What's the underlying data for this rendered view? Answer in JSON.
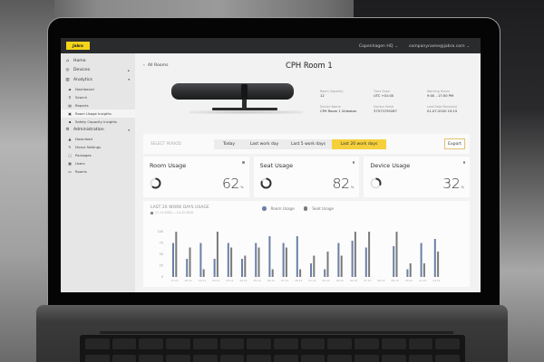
{
  "topbar": {
    "logo_text": "Jabra",
    "location": "Copenhagen HQ",
    "account": "companyname@jabra.com"
  },
  "sidebar": {
    "items": [
      {
        "label": "Home",
        "icon": "home-icon",
        "level": 0
      },
      {
        "label": "Devices",
        "icon": "headset-icon",
        "level": 0,
        "caret": "▸"
      },
      {
        "label": "Analytics",
        "icon": "analytics-icon",
        "level": 0,
        "caret": "▾"
      },
      {
        "label": "Dashboard",
        "icon": "dashboard-icon",
        "level": 1
      },
      {
        "label": "Search",
        "icon": "search-icon",
        "level": 1
      },
      {
        "label": "Reports",
        "icon": "reports-icon",
        "level": 1
      },
      {
        "label": "Room Usage Insights",
        "icon": "room-insights-icon",
        "level": 1,
        "active": true
      },
      {
        "label": "Safety Capacity Insights",
        "icon": "safety-icon",
        "level": 1
      },
      {
        "label": "Administration",
        "icon": "gear-icon",
        "level": 0,
        "caret": "▾"
      },
      {
        "label": "Download",
        "icon": "download-icon",
        "level": 1
      },
      {
        "label": "Direct Settings",
        "icon": "wrench-icon",
        "level": 1
      },
      {
        "label": "Packages",
        "icon": "package-icon",
        "level": 1
      },
      {
        "label": "Users",
        "icon": "users-icon",
        "level": 1
      },
      {
        "label": "Rooms",
        "icon": "rooms-icon",
        "level": 1
      }
    ]
  },
  "header": {
    "back_label": "All Rooms",
    "room_title": "CPH Room 1"
  },
  "device": {
    "meta": [
      {
        "label": "Room Capacity",
        "value": "12"
      },
      {
        "label": "Time Zone",
        "value": "UTC +01:00"
      },
      {
        "label": "Working Hours",
        "value": "9:00 - 17:00 PM"
      },
      {
        "label": "Device Name",
        "value": "CPH Room 1 Videobar"
      },
      {
        "label": "Device Serial",
        "value": "37573759287"
      },
      {
        "label": "Last Data Received",
        "value": "01-07-2020 10:15"
      }
    ]
  },
  "period": {
    "label": "SELECT PERIOD",
    "tabs": [
      {
        "label": "Today",
        "width": 33
      },
      {
        "label": "Last work day",
        "width": 45
      },
      {
        "label": "Last 5 work days",
        "width": 52
      },
      {
        "label": "Last 20 work days",
        "width": 60,
        "active": true
      }
    ],
    "export_label": "Export"
  },
  "kpis": [
    {
      "title": "Room Usage",
      "value": "62",
      "unit": "%",
      "pct": 62
    },
    {
      "title": "Seat Usage",
      "value": "82",
      "unit": "%",
      "pct": 82
    },
    {
      "title": "Device Usage",
      "value": "32",
      "unit": "%",
      "pct": 32
    }
  ],
  "colors": {
    "accent_yellow": "#f5d03b",
    "room_bar": "#6b7fa8",
    "seat_bar": "#7a7a7a",
    "topbar": "#2a2b2d"
  },
  "chart": {
    "title": "LAST 20 WORK DAYS USAGE",
    "date_range": "17-11-2020 — 14-12-2020",
    "legend": [
      {
        "name": "Room Usage",
        "color": "#6b7fa8"
      },
      {
        "name": "Seat Usage",
        "color": "#7a7a7a"
      }
    ]
  },
  "chart_data": {
    "type": "bar",
    "title": "LAST 20 WORK DAYS USAGE",
    "subtitle": "17-11-2020 — 14-12-2020",
    "xlabel": "",
    "ylabel": "",
    "ylim": [
      0,
      100
    ],
    "yticks": [
      0,
      25,
      50,
      75,
      100
    ],
    "grid": false,
    "legend_position": "top",
    "categories": [
      "17.11",
      "18.11",
      "19.11",
      "20.11",
      "23.11",
      "24.11",
      "25.11",
      "26.11",
      "27.11",
      "30.11",
      "01.12",
      "02.12",
      "03.12",
      "04.12",
      "07.12",
      "08.12",
      "09.12",
      "10.12",
      "11.12",
      "14.12"
    ],
    "series": [
      {
        "name": "Room Usage",
        "values": [
          75,
          40,
          75,
          40,
          75,
          40,
          75,
          90,
          75,
          90,
          30,
          17,
          75,
          80,
          65,
          0,
          68,
          17,
          75,
          84
        ]
      },
      {
        "name": "Seat Usage",
        "values": [
          100,
          65,
          17,
          100,
          65,
          47,
          65,
          17,
          65,
          17,
          47,
          56,
          47,
          100,
          100,
          0,
          100,
          30,
          30,
          56
        ]
      }
    ]
  }
}
